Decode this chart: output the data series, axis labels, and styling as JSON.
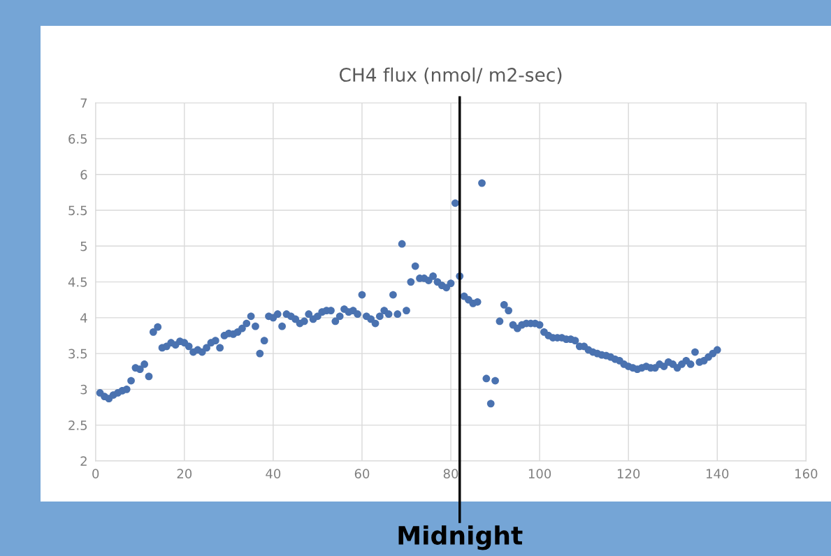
{
  "chart_data": {
    "type": "scatter",
    "title": "CH4 flux (nmol/ m2-sec)",
    "x": [
      1,
      2,
      3,
      4,
      5,
      6,
      7,
      8,
      9,
      10,
      11,
      12,
      13,
      14,
      15,
      16,
      17,
      18,
      19,
      20,
      21,
      22,
      23,
      24,
      25,
      26,
      27,
      28,
      29,
      30,
      31,
      32,
      33,
      34,
      35,
      36,
      37,
      38,
      39,
      40,
      41,
      42,
      43,
      44,
      45,
      46,
      47,
      48,
      49,
      50,
      51,
      52,
      53,
      54,
      55,
      56,
      57,
      58,
      59,
      60,
      61,
      62,
      63,
      64,
      65,
      66,
      67,
      68,
      69,
      70,
      71,
      72,
      73,
      74,
      75,
      76,
      77,
      78,
      79,
      80,
      81,
      82,
      83,
      84,
      85,
      86,
      87,
      88,
      89,
      90,
      91,
      92,
      93,
      94,
      95,
      96,
      97,
      98,
      99,
      100,
      101,
      102,
      103,
      104,
      105,
      106,
      107,
      108,
      109,
      110,
      111,
      112,
      113,
      114,
      115,
      116,
      117,
      118,
      119,
      120,
      121,
      122,
      123,
      124,
      125,
      126,
      127,
      128,
      129,
      130,
      131,
      132,
      133,
      134,
      135,
      136,
      137,
      138,
      139,
      140
    ],
    "series": [
      {
        "color": "#4a72b0",
        "values": [
          2.95,
          2.9,
          2.87,
          2.92,
          2.95,
          2.98,
          3.0,
          3.12,
          3.3,
          3.28,
          3.35,
          3.18,
          3.8,
          3.87,
          3.58,
          3.6,
          3.65,
          3.62,
          3.67,
          3.65,
          3.6,
          3.52,
          3.55,
          3.52,
          3.58,
          3.65,
          3.68,
          3.58,
          3.75,
          3.78,
          3.77,
          3.8,
          3.85,
          3.92,
          4.02,
          3.88,
          3.5,
          3.68,
          4.02,
          4.0,
          4.05,
          3.88,
          4.05,
          4.02,
          3.98,
          3.92,
          3.95,
          4.05,
          3.98,
          4.02,
          4.08,
          4.1,
          4.1,
          3.95,
          4.02,
          4.12,
          4.08,
          4.1,
          4.05,
          4.32,
          4.02,
          3.98,
          3.92,
          4.02,
          4.1,
          4.05,
          4.32,
          4.05,
          5.03,
          4.1,
          4.5,
          4.72,
          4.55,
          4.55,
          4.52,
          4.58,
          4.5,
          4.45,
          4.42,
          4.48,
          5.6,
          4.58,
          4.3,
          4.25,
          4.2,
          4.22,
          5.88,
          3.15,
          2.8,
          3.12,
          3.95,
          4.18,
          4.1,
          3.9,
          3.85,
          3.9,
          3.92,
          3.92,
          3.92,
          3.9,
          3.8,
          3.75,
          3.72,
          3.72,
          3.72,
          3.7,
          3.7,
          3.68,
          3.6,
          3.6,
          3.55,
          3.52,
          3.5,
          3.48,
          3.47,
          3.45,
          3.42,
          3.4,
          3.35,
          3.32,
          3.3,
          3.28,
          3.3,
          3.32,
          3.3,
          3.3,
          3.35,
          3.32,
          3.38,
          3.35,
          3.3,
          3.35,
          3.4,
          3.35,
          3.52,
          3.38,
          3.4,
          3.45,
          3.5,
          3.55
        ]
      }
    ],
    "xlim": [
      0,
      160
    ],
    "xticks": [
      0,
      20,
      40,
      60,
      80,
      100,
      120,
      140,
      160
    ],
    "ylim": [
      2,
      7
    ],
    "yticks": [
      2,
      2.5,
      3,
      3.5,
      4,
      4.5,
      5,
      5.5,
      6,
      6.5,
      7
    ],
    "grid": true,
    "marker": "circle",
    "ref_lines": [
      {
        "axis": "x",
        "value": 82,
        "label": "Midnight",
        "color": "#000000"
      }
    ]
  }
}
